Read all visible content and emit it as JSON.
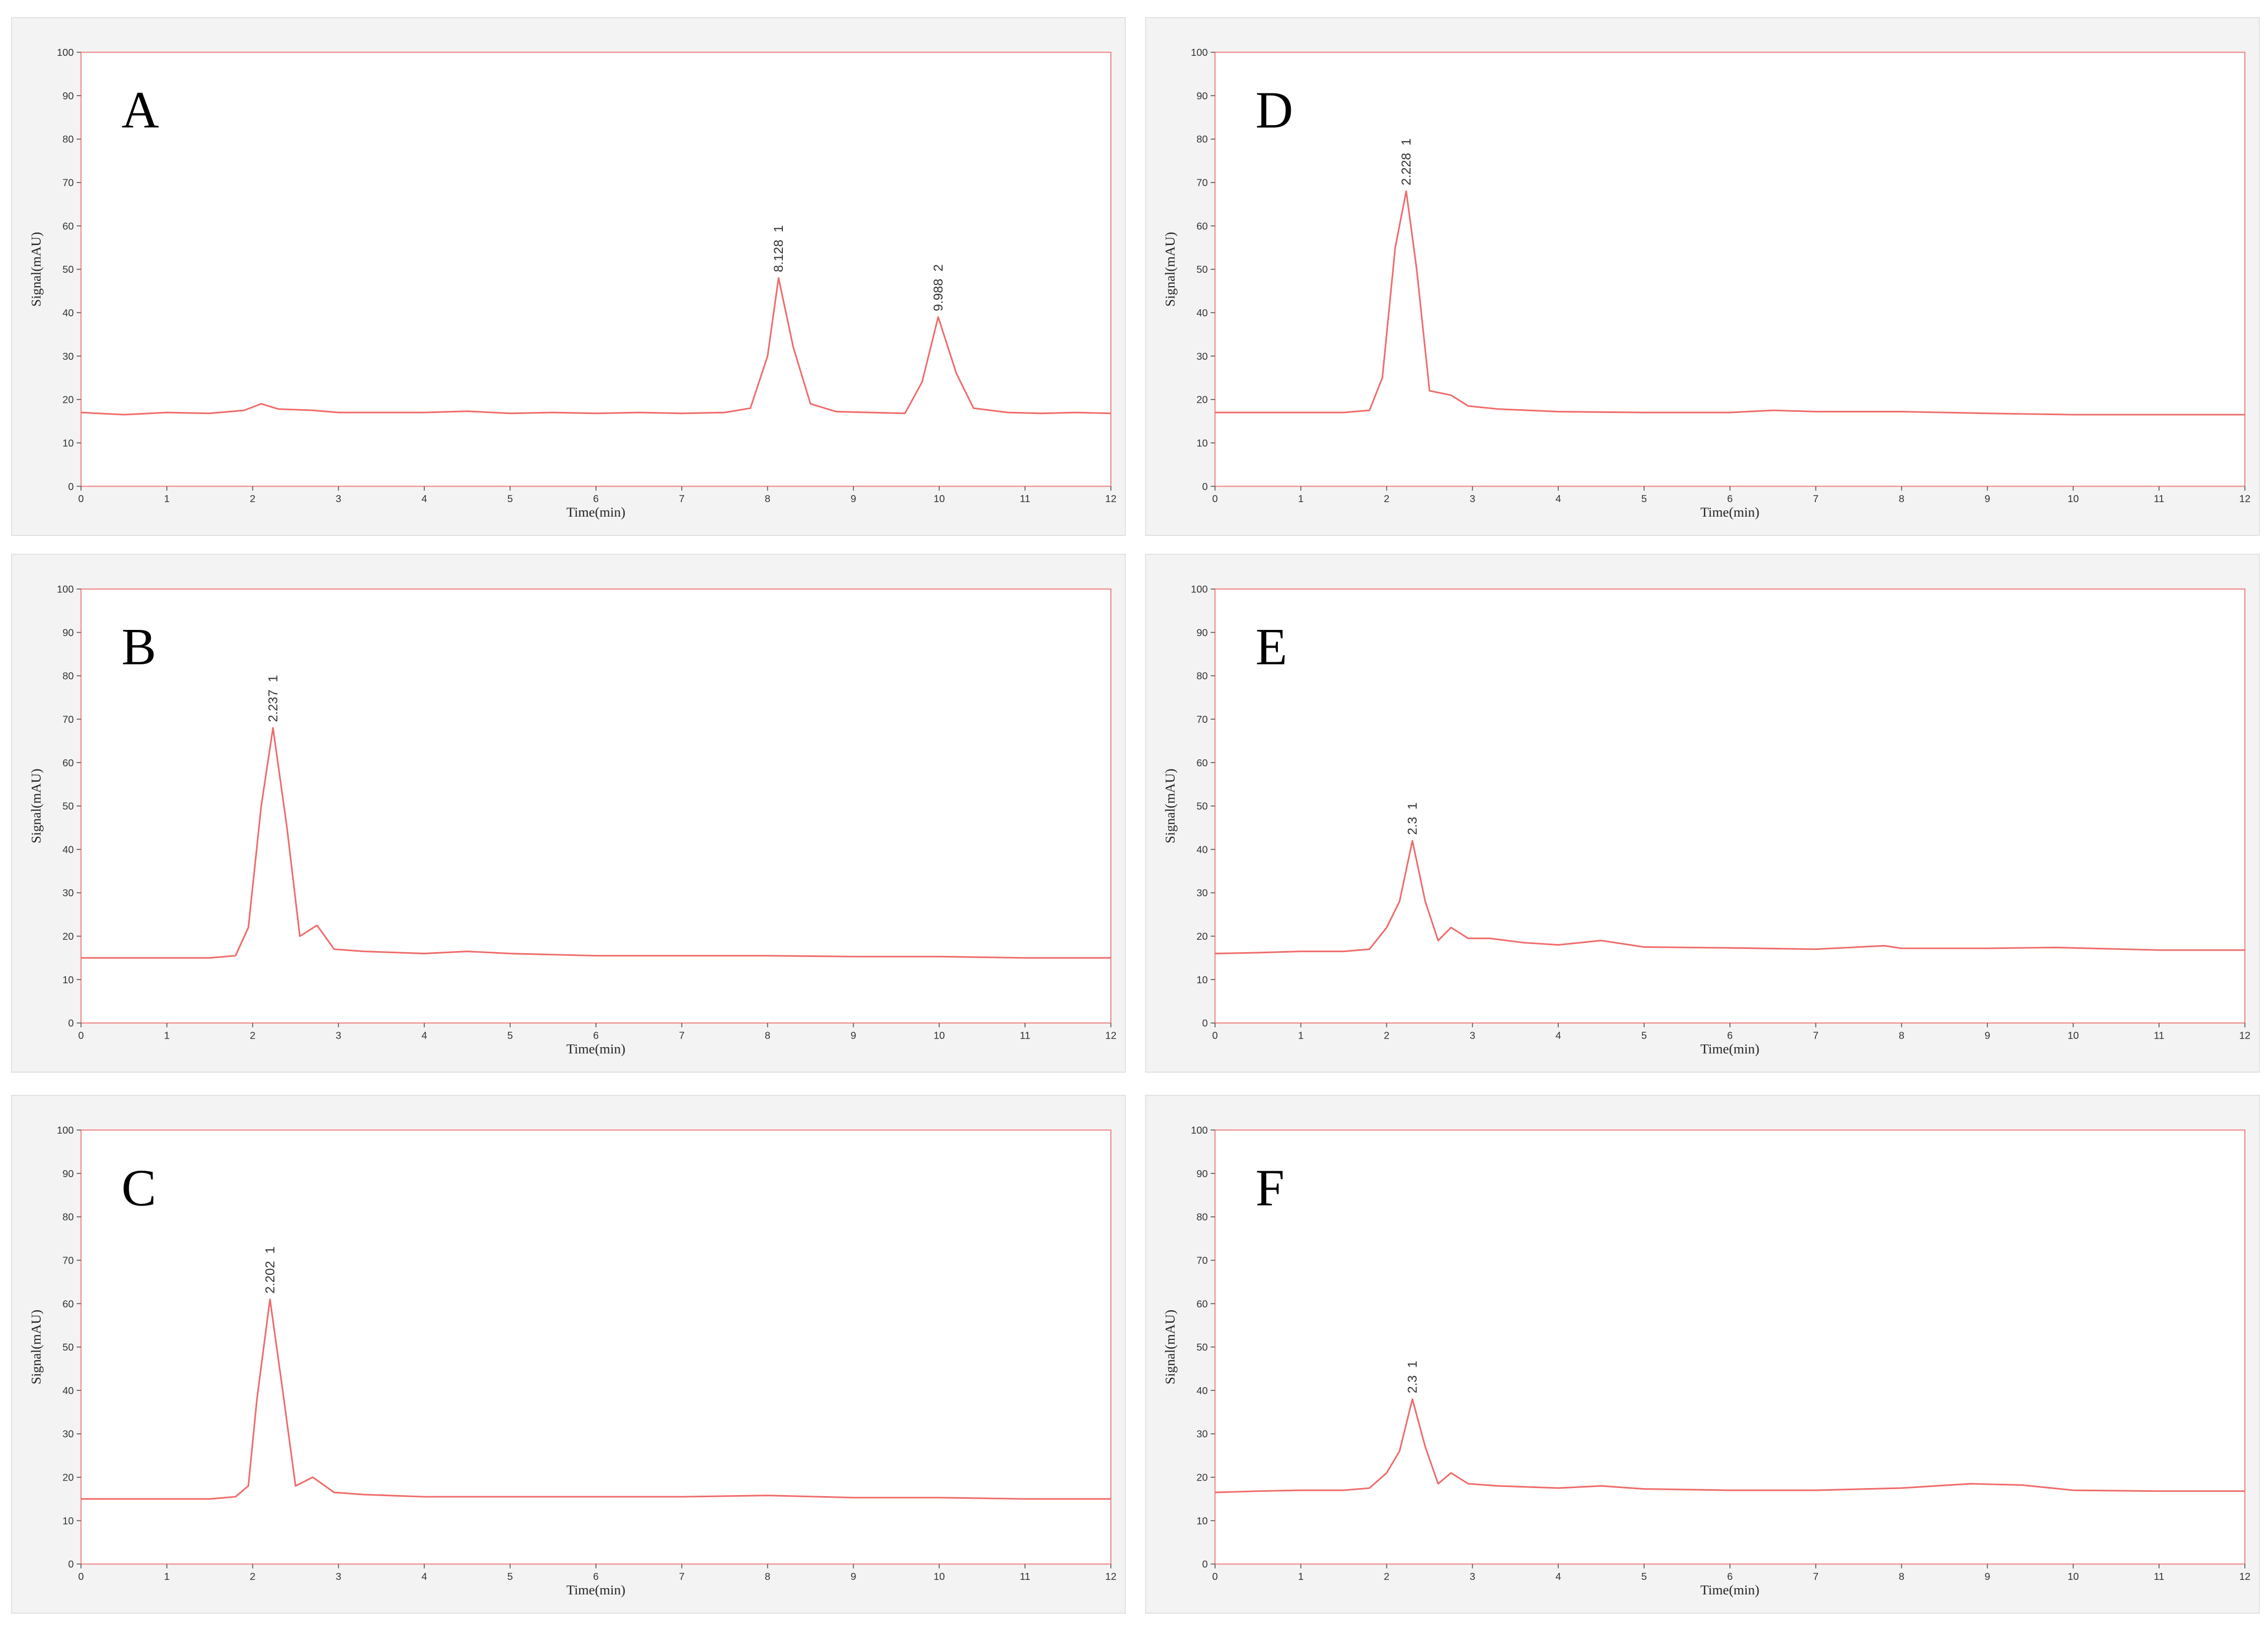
{
  "chart_data": [
    {
      "type": "line",
      "title": "A",
      "xlabel": "Time(min)",
      "ylabel": "Signal(mAU)",
      "color": "#f06a6a",
      "xlim": [
        0,
        12
      ],
      "xticks": [
        0,
        1,
        2,
        3,
        4,
        5,
        6,
        7,
        8,
        9,
        10,
        11,
        12
      ],
      "ylim": [
        0,
        100
      ],
      "yticks": [
        0,
        10,
        20,
        30,
        40,
        50,
        60,
        70,
        80,
        90,
        100
      ],
      "x": [
        0,
        0.5,
        1,
        1.5,
        1.9,
        2.1,
        2.3,
        2.7,
        3,
        3.5,
        4,
        4.5,
        5,
        5.5,
        6,
        6.5,
        7,
        7.5,
        7.8,
        8.0,
        8.128,
        8.3,
        8.5,
        8.8,
        9.2,
        9.6,
        9.8,
        9.988,
        10.2,
        10.4,
        10.8,
        11.2,
        11.6,
        12
      ],
      "values": [
        17,
        16.5,
        17,
        16.8,
        17.5,
        19,
        17.8,
        17.5,
        17,
        17,
        17,
        17.3,
        16.8,
        17,
        16.8,
        17,
        16.8,
        17,
        18,
        30,
        48,
        32,
        19,
        17.2,
        17,
        16.8,
        24,
        39,
        26,
        18,
        17,
        16.8,
        17,
        16.8
      ],
      "annotations": [
        {
          "text": "8.128  1",
          "x": 8.128,
          "y": 48
        },
        {
          "text": "9.988  2",
          "x": 9.988,
          "y": 39
        }
      ]
    },
    {
      "type": "line",
      "title": "B",
      "xlabel": "Time(min)",
      "ylabel": "Signal(mAU)",
      "color": "#f06a6a",
      "xlim": [
        0,
        12
      ],
      "xticks": [
        0,
        1,
        2,
        3,
        4,
        5,
        6,
        7,
        8,
        9,
        10,
        11,
        12
      ],
      "ylim": [
        0,
        100
      ],
      "yticks": [
        0,
        10,
        20,
        30,
        40,
        50,
        60,
        70,
        80,
        90,
        100
      ],
      "x": [
        0,
        0.5,
        1,
        1.5,
        1.8,
        1.95,
        2.1,
        2.237,
        2.4,
        2.55,
        2.75,
        2.95,
        3.3,
        4,
        4.5,
        5,
        6,
        7,
        8,
        9,
        10,
        11,
        12
      ],
      "values": [
        15,
        15,
        15,
        15,
        15.5,
        22,
        50,
        68,
        45,
        20,
        22.5,
        17,
        16.5,
        16,
        16.5,
        16,
        15.5,
        15.5,
        15.5,
        15.3,
        15.3,
        15,
        15
      ],
      "annotations": [
        {
          "text": "2.237  1",
          "x": 2.237,
          "y": 68
        }
      ]
    },
    {
      "type": "line",
      "title": "C",
      "xlabel": "Time(min)",
      "ylabel": "Signal(mAU)",
      "color": "#f06a6a",
      "xlim": [
        0,
        12
      ],
      "xticks": [
        0,
        1,
        2,
        3,
        4,
        5,
        6,
        7,
        8,
        9,
        10,
        11,
        12
      ],
      "ylim": [
        0,
        100
      ],
      "yticks": [
        0,
        10,
        20,
        30,
        40,
        50,
        60,
        70,
        80,
        90,
        100
      ],
      "x": [
        0,
        0.5,
        1,
        1.5,
        1.8,
        1.95,
        2.05,
        2.202,
        2.35,
        2.5,
        2.7,
        2.95,
        3.3,
        4,
        5,
        6,
        7,
        8,
        9,
        10,
        11,
        12
      ],
      "values": [
        15,
        15,
        15,
        15,
        15.5,
        18,
        38,
        61,
        40,
        18,
        20,
        16.5,
        16,
        15.5,
        15.5,
        15.5,
        15.5,
        15.8,
        15.3,
        15.3,
        15,
        15
      ],
      "annotations": [
        {
          "text": "2.202  1",
          "x": 2.202,
          "y": 61
        }
      ]
    },
    {
      "type": "line",
      "title": "D",
      "xlabel": "Time(min)",
      "ylabel": "Signal(mAU)",
      "color": "#f06a6a",
      "xlim": [
        0,
        12
      ],
      "xticks": [
        0,
        1,
        2,
        3,
        4,
        5,
        6,
        7,
        8,
        9,
        10,
        11,
        12
      ],
      "ylim": [
        0,
        100
      ],
      "yticks": [
        0,
        10,
        20,
        30,
        40,
        50,
        60,
        70,
        80,
        90,
        100
      ],
      "x": [
        0,
        0.5,
        1,
        1.5,
        1.8,
        1.95,
        2.1,
        2.228,
        2.35,
        2.5,
        2.75,
        2.95,
        3.3,
        4,
        5,
        6,
        6.5,
        7,
        8,
        9,
        10,
        11,
        12
      ],
      "values": [
        17,
        17,
        17,
        17,
        17.5,
        25,
        55,
        68,
        50,
        22,
        21,
        18.5,
        17.8,
        17.2,
        17,
        17,
        17.5,
        17.2,
        17.2,
        16.8,
        16.5,
        16.5,
        16.5
      ],
      "annotations": [
        {
          "text": "2.228  1",
          "x": 2.228,
          "y": 68
        }
      ]
    },
    {
      "type": "line",
      "title": "E",
      "xlabel": "Time(min)",
      "ylabel": "Signal(mAU)",
      "color": "#f06a6a",
      "xlim": [
        0,
        12
      ],
      "xticks": [
        0,
        1,
        2,
        3,
        4,
        5,
        6,
        7,
        8,
        9,
        10,
        11,
        12
      ],
      "ylim": [
        0,
        100
      ],
      "yticks": [
        0,
        10,
        20,
        30,
        40,
        50,
        60,
        70,
        80,
        90,
        100
      ],
      "x": [
        0,
        0.5,
        1,
        1.5,
        1.8,
        2.0,
        2.15,
        2.3,
        2.45,
        2.6,
        2.75,
        2.95,
        3.2,
        3.6,
        4,
        4.5,
        5,
        6,
        7,
        7.8,
        8,
        9,
        9.8,
        11,
        12
      ],
      "values": [
        16,
        16.2,
        16.5,
        16.5,
        17,
        22,
        28,
        42,
        28,
        19,
        22,
        19.5,
        19.5,
        18.5,
        18,
        19,
        17.5,
        17.3,
        17,
        17.8,
        17.2,
        17.2,
        17.4,
        16.8,
        16.8
      ],
      "annotations": [
        {
          "text": "2.3  1",
          "x": 2.3,
          "y": 42
        }
      ]
    },
    {
      "type": "line",
      "title": "F",
      "xlabel": "Time(min)",
      "ylabel": "Signal(mAU)",
      "color": "#f06a6a",
      "xlim": [
        0,
        12
      ],
      "xticks": [
        0,
        1,
        2,
        3,
        4,
        5,
        6,
        7,
        8,
        9,
        10,
        11,
        12
      ],
      "ylim": [
        0,
        100
      ],
      "yticks": [
        0,
        10,
        20,
        30,
        40,
        50,
        60,
        70,
        80,
        90,
        100
      ],
      "x": [
        0,
        0.5,
        1,
        1.5,
        1.8,
        2.0,
        2.15,
        2.3,
        2.45,
        2.6,
        2.75,
        2.95,
        3.3,
        4,
        4.5,
        5,
        6,
        7,
        8,
        8.8,
        9.4,
        10,
        11,
        12
      ],
      "values": [
        16.5,
        16.8,
        17,
        17,
        17.5,
        21,
        26,
        38,
        27,
        18.5,
        21,
        18.5,
        18,
        17.5,
        18,
        17.3,
        17,
        17,
        17.5,
        18.5,
        18.2,
        17,
        16.8,
        16.8
      ],
      "annotations": [
        {
          "text": "2.3  1",
          "x": 2.3,
          "y": 38
        }
      ]
    }
  ]
}
